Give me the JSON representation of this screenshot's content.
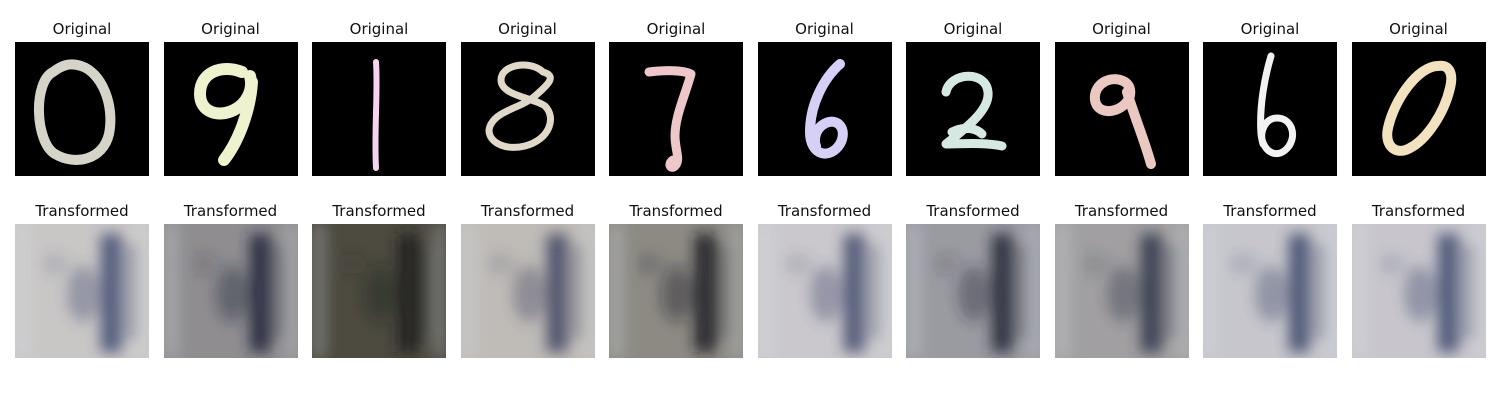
{
  "rows": [
    {
      "name": "original",
      "label": "Original",
      "images": [
        {
          "digit": "0",
          "color": "#d6d4c8"
        },
        {
          "digit": "9",
          "color": "#eef2cf"
        },
        {
          "digit": "1",
          "color": "#f6d4ee"
        },
        {
          "digit": "8",
          "color": "#e0d8c8"
        },
        {
          "digit": "7",
          "color": "#eec7cb"
        },
        {
          "digit": "6",
          "color": "#d6d0f6"
        },
        {
          "digit": "2",
          "color": "#d6e8e2"
        },
        {
          "digit": "9",
          "color": "#ecc8c2"
        },
        {
          "digit": "6",
          "color": "#f2f2f2"
        },
        {
          "digit": "0",
          "color": "#f2e2c0"
        }
      ]
    },
    {
      "name": "transformed",
      "label": "Transformed",
      "images": [
        {
          "bg": "#c9c6c6",
          "dark": "#3d4a70"
        },
        {
          "bg": "#8f8d90",
          "dark": "#1d2438"
        },
        {
          "bg": "#4d4a40",
          "dark": "#1c1e1c"
        },
        {
          "bg": "#bfbbb7",
          "dark": "#3d4260"
        },
        {
          "bg": "#8d8a84",
          "dark": "#15181e"
        },
        {
          "bg": "#cac8cc",
          "dark": "#3f486b"
        },
        {
          "bg": "#9a9aa1",
          "dark": "#1e2232"
        },
        {
          "bg": "#a19fa1",
          "dark": "#2a3046"
        },
        {
          "bg": "#c6c6cc",
          "dark": "#3a4468"
        },
        {
          "bg": "#c8c6cc",
          "dark": "#3b466c"
        }
      ]
    }
  ]
}
